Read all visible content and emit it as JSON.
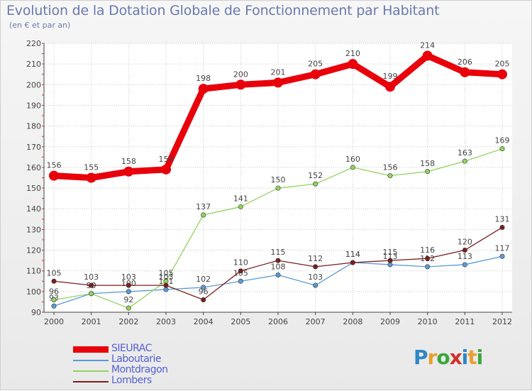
{
  "title": "Evolution de la Dotation Globale de Fonctionnement par Habitant",
  "subtitle": "(en € et par an)",
  "logo": {
    "text": "Proxiti",
    "colors": [
      "#2f86c8",
      "#e8a02a",
      "#3aa63a",
      "#d0302a",
      "#2f86c8",
      "#e8a02a",
      "#3aa63a"
    ]
  },
  "chart_data": {
    "type": "line",
    "title": "Evolution de la Dotation Globale de Fonctionnement par Habitant",
    "subtitle": "(en € et par an)",
    "xlabel": "",
    "ylabel": "",
    "x": [
      "2000",
      "2001",
      "2002",
      "2003",
      "2004",
      "2005",
      "2006",
      "2007",
      "2008",
      "2009",
      "2010",
      "2011",
      "2012"
    ],
    "ylim": [
      90,
      220
    ],
    "yticks": [
      90,
      100,
      110,
      120,
      130,
      140,
      150,
      160,
      170,
      180,
      190,
      200,
      210,
      220
    ],
    "grid": true,
    "legend": "bottom-left",
    "series": [
      {
        "name": "SIEURAC",
        "color": "#e8000b",
        "values": [
          156,
          155,
          158,
          159,
          198,
          200,
          201,
          205,
          210,
          199,
          214,
          206,
          205
        ]
      },
      {
        "name": "Laboutarie",
        "color": "#5b9bd5",
        "values": [
          93,
          99,
          100,
          101,
          102,
          105,
          108,
          103,
          114,
          113,
          112,
          113,
          117
        ]
      },
      {
        "name": "Montdragon",
        "color": "#8fd45f",
        "values": [
          96,
          99,
          92,
          105,
          137,
          141,
          150,
          152,
          160,
          156,
          158,
          163,
          169
        ]
      },
      {
        "name": "Lombers",
        "color": "#7a1f1f",
        "values": [
          105,
          103,
          103,
          103,
          96,
          110,
          115,
          112,
          114,
          115,
          116,
          120,
          131
        ]
      }
    ]
  }
}
